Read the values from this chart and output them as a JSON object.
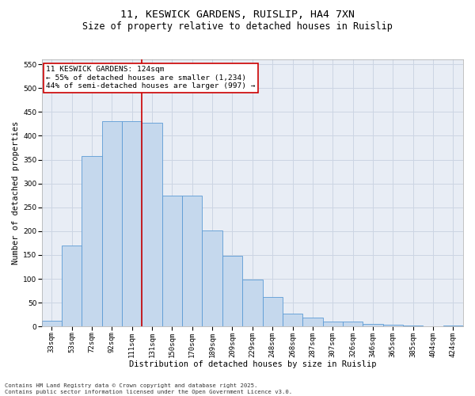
{
  "title_line1": "11, KESWICK GARDENS, RUISLIP, HA4 7XN",
  "title_line2": "Size of property relative to detached houses in Ruislip",
  "xlabel": "Distribution of detached houses by size in Ruislip",
  "ylabel": "Number of detached properties",
  "categories": [
    "33sqm",
    "53sqm",
    "72sqm",
    "92sqm",
    "111sqm",
    "131sqm",
    "150sqm",
    "170sqm",
    "189sqm",
    "209sqm",
    "229sqm",
    "248sqm",
    "268sqm",
    "287sqm",
    "307sqm",
    "326sqm",
    "346sqm",
    "365sqm",
    "385sqm",
    "404sqm",
    "424sqm"
  ],
  "values": [
    12,
    170,
    357,
    430,
    430,
    428,
    275,
    275,
    202,
    149,
    98,
    62,
    27,
    19,
    10,
    11,
    5,
    4,
    2,
    1,
    2
  ],
  "bar_color": "#c5d8ed",
  "bar_edge_color": "#5b9bd5",
  "property_line_x": 4.5,
  "annotation_text_line1": "11 KESWICK GARDENS: 124sqm",
  "annotation_text_line2": "← 55% of detached houses are smaller (1,234)",
  "annotation_text_line3": "44% of semi-detached houses are larger (997) →",
  "annotation_box_color": "#ffffff",
  "annotation_box_edge": "#cc0000",
  "vline_color": "#cc0000",
  "ylim": [
    0,
    560
  ],
  "yticks": [
    0,
    50,
    100,
    150,
    200,
    250,
    300,
    350,
    400,
    450,
    500,
    550
  ],
  "grid_color": "#ccd5e3",
  "background_color": "#e8edf5",
  "footer_line1": "Contains HM Land Registry data © Crown copyright and database right 2025.",
  "footer_line2": "Contains public sector information licensed under the Open Government Licence v3.0.",
  "title_fontsize": 9.5,
  "subtitle_fontsize": 8.5,
  "tick_fontsize": 6.5,
  "label_fontsize": 7.5,
  "annotation_fontsize": 6.8,
  "footer_fontsize": 5.2
}
